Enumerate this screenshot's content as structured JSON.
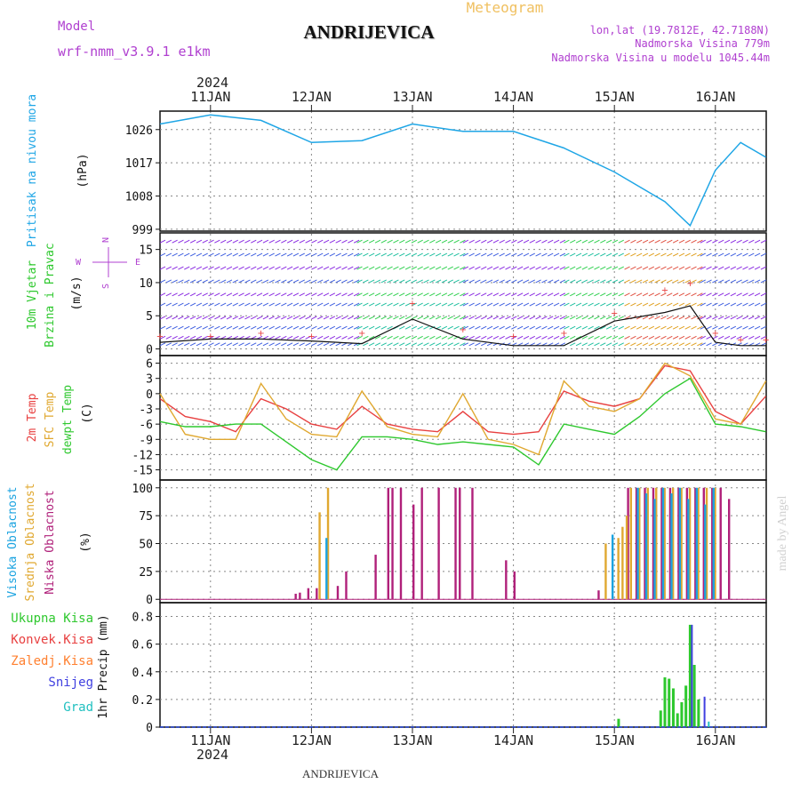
{
  "header": {
    "model_label": "Model",
    "model_value": "wrf-nmm_v3.9.1  e1km",
    "title": "ANDRIJEVICA",
    "meteogram": "Meteogram",
    "lonlat": "lon,lat (19.7812E, 42.7188N)",
    "elev": "Nadmorska Visina 779m",
    "elev_model": "Nadmorska Visina u modelu 1045.44m",
    "year": "2024",
    "footer_title": "ANDRIJEVICA",
    "watermark": "made by Angel"
  },
  "colors": {
    "pressure": "#1fa6e6",
    "cloud_high": "#1aa3e0",
    "cloud_mid": "#e0a830",
    "cloud_low": "#b0207a",
    "temp2m": "#e84040",
    "tsfc": "#e0a830",
    "dewpt": "#2ec82e",
    "precip_total": "#2ec82e",
    "precip_conv": "#e84040",
    "precip_frz": "#ff8030",
    "precip_snow": "#4040e0",
    "precip_grad": "#20c0c0",
    "header_purple": "#b040d0",
    "meteogram_orange": "#f0c060"
  },
  "chart_data": [
    {
      "type": "line",
      "panel": "pressure",
      "ylabel": [
        "Pritisak na nivou mora",
        "(hPa)"
      ],
      "yticks": [
        999,
        1008,
        1017,
        1026
      ],
      "ylim": [
        998.5,
        1031
      ],
      "x": [
        "10JAN12",
        "11JAN00",
        "11JAN12",
        "12JAN00",
        "12JAN12",
        "13JAN00",
        "13JAN12",
        "14JAN00",
        "14JAN12",
        "15JAN00",
        "15JAN12",
        "15JAN18",
        "16JAN00",
        "16JAN06",
        "16JAN12"
      ],
      "series": [
        {
          "values": [
            1027.5,
            1030,
            1028.5,
            1022.5,
            1023,
            1027.5,
            1025.5,
            1025.5,
            1021,
            1014.5,
            1006.5,
            1000,
            1015,
            1022.5,
            1018.5
          ]
        }
      ]
    },
    {
      "type": "line",
      "panel": "wind",
      "ylabel": [
        "10m Vjetar",
        "Brzina i Pravac",
        "(m/s)"
      ],
      "compass": [
        "N",
        "W",
        "E",
        "S"
      ],
      "yticks": [
        0,
        5,
        10,
        15
      ],
      "ylim": [
        -1,
        17.5
      ],
      "x": [
        "10JAN12",
        "11JAN00",
        "11JAN12",
        "12JAN00",
        "12JAN12",
        "13JAN00",
        "13JAN12",
        "14JAN00",
        "14JAN12",
        "15JAN00",
        "15JAN12",
        "15JAN18",
        "16JAN00",
        "16JAN06",
        "16JAN12"
      ],
      "series": [
        {
          "name": "speed",
          "values": [
            1,
            1.5,
            1.5,
            1.2,
            0.8,
            4.5,
            1.5,
            0.5,
            0.5,
            4.2,
            5.5,
            6.5,
            1,
            0.5,
            0.5
          ]
        },
        {
          "name": "gust",
          "values": [
            2,
            2,
            2.5,
            2,
            2.5,
            7,
            3,
            2,
            2.5,
            5.5,
            9,
            10,
            2.5,
            1.5,
            1.5
          ]
        }
      ]
    },
    {
      "type": "line",
      "panel": "temperature",
      "ylabel": [
        "2m Temp",
        "SFC Temp",
        "dewpt Temp",
        "(C)"
      ],
      "yticks": [
        6,
        3,
        0,
        -3,
        -6,
        -9,
        -12,
        -15
      ],
      "ylim": [
        -17,
        7.5
      ],
      "x": [
        "10JAN12",
        "10JAN18",
        "11JAN00",
        "11JAN06",
        "11JAN12",
        "11JAN18",
        "12JAN00",
        "12JAN06",
        "12JAN12",
        "12JAN18",
        "13JAN00",
        "13JAN06",
        "13JAN12",
        "13JAN18",
        "14JAN00",
        "14JAN06",
        "14JAN12",
        "14JAN18",
        "15JAN00",
        "15JAN06",
        "15JAN12",
        "15JAN18",
        "16JAN00",
        "16JAN06",
        "16JAN12"
      ],
      "series": [
        {
          "name": "2m Temp",
          "values": [
            -1,
            -4.5,
            -5.5,
            -7.5,
            -1,
            -3,
            -6,
            -7,
            -2.5,
            -6,
            -7,
            -7.5,
            -3.5,
            -7.5,
            -8,
            -7.5,
            0.5,
            -1.5,
            -2.5,
            -1,
            5.5,
            4.5,
            -3.5,
            -6,
            -0.5
          ]
        },
        {
          "name": "SFC Temp",
          "values": [
            0,
            -8,
            -9,
            -9,
            2,
            -5,
            -8,
            -8.5,
            0.5,
            -6.5,
            -8,
            -8.5,
            0,
            -9,
            -10,
            -12,
            2.5,
            -2.5,
            -3.5,
            -1,
            6,
            3.5,
            -5,
            -6,
            2.5
          ]
        },
        {
          "name": "dewpt Temp",
          "values": [
            -5.5,
            -6.5,
            -6.5,
            -6,
            -6,
            -9.5,
            -13,
            -15,
            -8.5,
            -8.5,
            -9,
            -10,
            -9.5,
            -10,
            -10.5,
            -14,
            -6,
            -7,
            -8,
            -4.5,
            0,
            3,
            -6,
            -6.5,
            -7.5
          ]
        }
      ]
    },
    {
      "type": "bar",
      "panel": "cloud",
      "ylabel": [
        "Visoka Oblacnost",
        "Srednja Oblacnost",
        "Niska Oblacnost",
        "(%)"
      ],
      "yticks": [
        0,
        25,
        50,
        75,
        100
      ],
      "ylim": [
        -3,
        107
      ],
      "high_cloud": [
        [
          "12JAN03",
          55
        ],
        [
          "14JAN23",
          58
        ],
        [
          "15JAN05",
          100
        ],
        [
          "15JAN07",
          95
        ],
        [
          "15JAN09",
          90
        ],
        [
          "15JAN11",
          100
        ],
        [
          "15JAN13",
          95
        ],
        [
          "15JAN15",
          100
        ],
        [
          "15JAN17",
          90
        ],
        [
          "15JAN19",
          100
        ],
        [
          "15JAN21",
          85
        ],
        [
          "15JAN23",
          100
        ]
      ],
      "mid_cloud": [
        [
          "12JAN02",
          78
        ],
        [
          "12JAN04",
          100
        ],
        [
          "14JAN22",
          50
        ],
        [
          "15JAN01",
          55
        ],
        [
          "15JAN02",
          65
        ],
        [
          "15JAN03",
          75
        ],
        [
          "15JAN04",
          100
        ],
        [
          "15JAN06",
          100
        ],
        [
          "15JAN08",
          100
        ],
        [
          "15JAN10",
          100
        ],
        [
          "15JAN12",
          100
        ],
        [
          "15JAN14",
          100
        ],
        [
          "15JAN16",
          100
        ],
        [
          "15JAN18",
          100
        ],
        [
          "15JAN20",
          100
        ],
        [
          "15JAN22",
          100
        ],
        [
          "16JAN00",
          100
        ]
      ],
      "low_cloud": [
        [
          "11JAN20",
          5
        ],
        [
          "11JAN21",
          6
        ],
        [
          "11JAN23",
          10
        ],
        [
          "12JAN01",
          10
        ],
        [
          "12JAN06",
          12
        ],
        [
          "12JAN08",
          25
        ],
        [
          "12JAN15",
          40
        ],
        [
          "12JAN18",
          100
        ],
        [
          "12JAN19",
          100
        ],
        [
          "12JAN21",
          100
        ],
        [
          "13JAN00",
          85
        ],
        [
          "13JAN02",
          100
        ],
        [
          "13JAN06",
          100
        ],
        [
          "13JAN10",
          100
        ],
        [
          "13JAN11",
          100
        ],
        [
          "13JAN14",
          100
        ],
        [
          "13JAN22",
          35
        ],
        [
          "14JAN00",
          25
        ],
        [
          "14JAN20",
          8
        ],
        [
          "15JAN03",
          100
        ],
        [
          "15JAN05",
          100
        ],
        [
          "15JAN07",
          100
        ],
        [
          "15JAN09",
          100
        ],
        [
          "15JAN11",
          100
        ],
        [
          "15JAN13",
          100
        ],
        [
          "15JAN15",
          100
        ],
        [
          "15JAN17",
          100
        ],
        [
          "15JAN19",
          100
        ],
        [
          "15JAN21",
          100
        ],
        [
          "15JAN23",
          100
        ],
        [
          "16JAN01",
          100
        ],
        [
          "16JAN03",
          90
        ]
      ]
    },
    {
      "type": "bar",
      "panel": "precip",
      "ylabel": [
        "1hr Precip (mm)"
      ],
      "legend": [
        "Ukupna Kisa",
        "Konvek.Kisa",
        "Zaledj.Kisa",
        "Snijeg",
        "Grad"
      ],
      "yticks": [
        0,
        0.2,
        0.4,
        0.6,
        0.8
      ],
      "ylim": [
        0,
        0.9
      ],
      "total": [
        [
          "15JAN01",
          0.06
        ],
        [
          "15JAN11",
          0.12
        ],
        [
          "15JAN12",
          0.36
        ],
        [
          "15JAN13",
          0.35
        ],
        [
          "15JAN14",
          0.28
        ],
        [
          "15JAN15",
          0.1
        ],
        [
          "15JAN16",
          0.18
        ],
        [
          "15JAN17",
          0.3
        ],
        [
          "15JAN18",
          0.74
        ],
        [
          "15JAN19",
          0.45
        ],
        [
          "15JAN20",
          0.2
        ]
      ],
      "snow": [
        [
          "15JAN18",
          0.74
        ],
        [
          "15JAN21",
          0.22
        ]
      ],
      "grad": [
        [
          "15JAN22",
          0.04
        ]
      ]
    }
  ],
  "x_axis": {
    "day_labels": [
      "11JAN",
      "12JAN",
      "13JAN",
      "14JAN",
      "15JAN",
      "16JAN"
    ],
    "range": [
      "10JAN12",
      "16JAN12"
    ]
  }
}
